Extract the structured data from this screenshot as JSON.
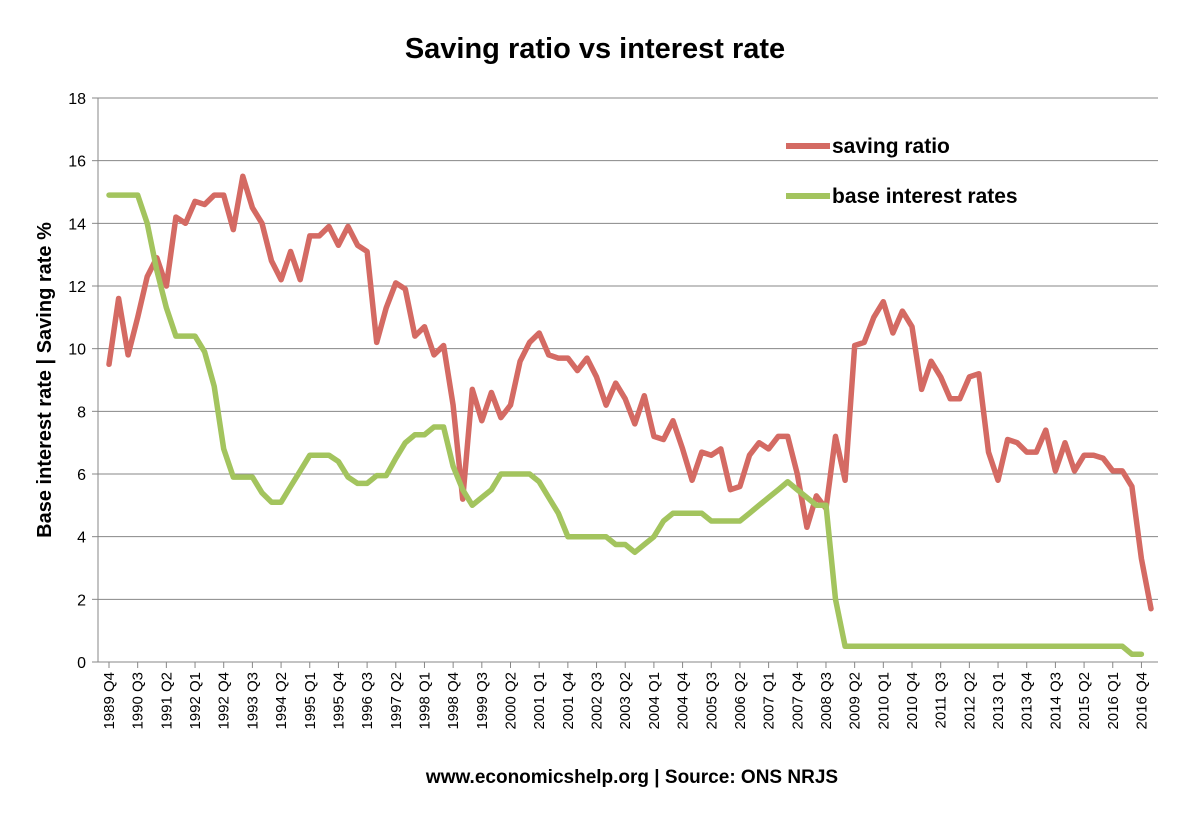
{
  "chart_data": {
    "type": "line",
    "title": "Saving ratio vs interest rate",
    "ylabel": "Base interest rate  |  Saving rate %",
    "xlabel": "www.economicshelp.org | Source: ONS NRJS",
    "ylim": [
      0,
      18
    ],
    "yticks": [
      "0",
      "2",
      "4",
      "6",
      "8",
      "10",
      "12",
      "14",
      "16",
      "18"
    ],
    "grid": true,
    "legend_position": "top-right",
    "x_start": "1989 Q4",
    "x_end": "2017 Q1",
    "xtick_labels": [
      "1989 Q4",
      "1990 Q3",
      "1991 Q2",
      "1992 Q1",
      "1992 Q4",
      "1993 Q3",
      "1994 Q2",
      "1995 Q1",
      "1995 Q4",
      "1996 Q3",
      "1997 Q2",
      "1998 Q1",
      "1998 Q4",
      "1999 Q3",
      "2000 Q2",
      "2001 Q1",
      "2001 Q4",
      "2002 Q3",
      "2003 Q2",
      "2004 Q1",
      "2004 Q4",
      "2005 Q3",
      "2006 Q2",
      "2007 Q1",
      "2007 Q4",
      "2008 Q3",
      "2009 Q2",
      "2010 Q1",
      "2010 Q4",
      "2011 Q3",
      "2012 Q2",
      "2013 Q1",
      "2013 Q4",
      "2014 Q3",
      "2015 Q2",
      "2016 Q1",
      "2016 Q4"
    ],
    "series": [
      {
        "name": "saving ratio",
        "color": "#D46A63",
        "values": [
          9.5,
          11.6,
          9.8,
          11.0,
          12.3,
          12.9,
          12.0,
          14.2,
          14.0,
          14.7,
          14.6,
          14.9,
          14.9,
          13.8,
          15.5,
          14.5,
          14.0,
          12.8,
          12.2,
          13.1,
          12.2,
          13.6,
          13.6,
          13.9,
          13.3,
          13.9,
          13.3,
          13.1,
          10.2,
          11.3,
          12.1,
          11.9,
          10.4,
          10.7,
          9.8,
          10.1,
          8.2,
          5.2,
          8.7,
          7.7,
          8.6,
          7.8,
          8.2,
          9.6,
          10.2,
          10.5,
          9.8,
          9.7,
          9.7,
          9.3,
          9.7,
          9.1,
          8.2,
          8.9,
          8.4,
          7.6,
          8.5,
          7.2,
          7.1,
          7.7,
          6.8,
          5.8,
          6.7,
          6.6,
          6.8,
          5.5,
          5.6,
          6.6,
          7.0,
          6.8,
          7.2,
          7.2,
          6.0,
          4.3,
          5.3,
          4.9,
          7.2,
          5.8,
          10.1,
          10.2,
          11.0,
          11.5,
          10.5,
          11.2,
          10.7,
          8.7,
          9.6,
          9.1,
          8.4,
          8.4,
          9.1,
          9.2,
          6.7,
          5.8,
          7.1,
          7.0,
          6.7,
          6.7,
          7.4,
          6.1,
          7.0,
          6.1,
          6.6,
          6.6,
          6.5,
          6.1,
          6.1,
          5.6,
          3.3,
          1.7
        ]
      },
      {
        "name": "base interest rates",
        "color": "#A3C45E",
        "values": [
          14.9,
          14.9,
          14.9,
          14.9,
          14.0,
          12.5,
          11.3,
          10.4,
          10.4,
          10.4,
          9.9,
          8.8,
          6.8,
          5.9,
          5.9,
          5.9,
          5.4,
          5.1,
          5.1,
          5.6,
          6.1,
          6.6,
          6.6,
          6.6,
          6.4,
          5.9,
          5.7,
          5.7,
          5.95,
          5.95,
          6.5,
          7.0,
          7.25,
          7.25,
          7.5,
          7.5,
          6.25,
          5.5,
          5.0,
          5.25,
          5.5,
          6.0,
          6.0,
          6.0,
          6.0,
          5.75,
          5.25,
          4.75,
          4.0,
          4.0,
          4.0,
          4.0,
          4.0,
          3.75,
          3.75,
          3.5,
          3.75,
          4.0,
          4.5,
          4.75,
          4.75,
          4.75,
          4.75,
          4.5,
          4.5,
          4.5,
          4.5,
          4.75,
          5.0,
          5.25,
          5.5,
          5.75,
          5.5,
          5.25,
          5.0,
          5.0,
          2.0,
          0.5,
          0.5,
          0.5,
          0.5,
          0.5,
          0.5,
          0.5,
          0.5,
          0.5,
          0.5,
          0.5,
          0.5,
          0.5,
          0.5,
          0.5,
          0.5,
          0.5,
          0.5,
          0.5,
          0.5,
          0.5,
          0.5,
          0.5,
          0.5,
          0.5,
          0.5,
          0.5,
          0.5,
          0.5,
          0.5,
          0.25,
          0.25
        ]
      }
    ]
  }
}
